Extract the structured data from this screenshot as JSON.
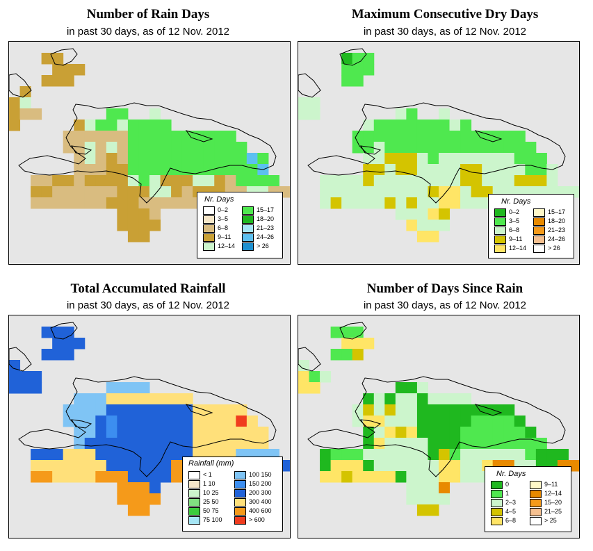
{
  "panels": {
    "p1": {
      "title": "Number of Rain Days",
      "subtitle": "in past 30 days, as of  12 Nov. 2012",
      "legend_title": "Nr. Days",
      "legend": [
        {
          "label": "0–2",
          "color": "#ffffff"
        },
        {
          "label": "3–5",
          "color": "#f5e6c8"
        },
        {
          "label": "6–8",
          "color": "#d9bc80"
        },
        {
          "label": "9–11",
          "color": "#c9a035"
        },
        {
          "label": "12–14",
          "color": "#ccf5cc"
        },
        {
          "label": "15–17",
          "color": "#4fe84f"
        },
        {
          "label": "18–20",
          "color": "#1fb81f"
        },
        {
          "label": "21–23",
          "color": "#a6e6f5"
        },
        {
          "label": "24–26",
          "color": "#5cc0f0"
        },
        {
          "label": "> 26",
          "color": "#1e90d0"
        }
      ],
      "grid": [
        "..........................",
        "...DD.....................",
        "....DDD...................",
        "...DDD....................",
        ".D........................",
        "DL........................",
        "DCC......GG..L............",
        "D.....DLGGLGGGG...........",
        ".....CCCCCCGGGGGGGGGG.....",
        ".....CCLCLCGGGGGGGGGGG....",
        "......CLCDCGGGGGGGGGGGSG..",
        "......CCCDDGGGGGGGGGGGGS..",
        "..CCDDCDDDDLGLDDDLLDCGGGG.",
        "..DDCCCCCCDDDLLDCDDDCCLLCC",
        "..CCCCCCCDDDCCCCCCCCCCC...",
        "..........DDDC............",
        "..........DDDD............",
        "...........DD.............",
        "..........................",
        ".........................."
      ]
    },
    "p2": {
      "title": "Maximum Consecutive Dry Days",
      "subtitle": "in past 30 days, as of  12 Nov. 2012",
      "legend_title": "Nr. Days",
      "legend": [
        {
          "label": "0–2",
          "color": "#1fb81f"
        },
        {
          "label": "3–5",
          "color": "#4fe84f"
        },
        {
          "label": "6–8",
          "color": "#ccf5cc"
        },
        {
          "label": "9–11",
          "color": "#d4c400"
        },
        {
          "label": "12–14",
          "color": "#ffe566"
        },
        {
          "label": "15–17",
          "color": "#fff8c8"
        },
        {
          "label": "18–20",
          "color": "#e88a00"
        },
        {
          "label": "21–23",
          "color": "#f59a1a"
        },
        {
          "label": "24–26",
          "color": "#f5c090"
        },
        {
          "label": "> 26",
          "color": "#ffffff"
        }
      ],
      "grid": [
        "..........................",
        "....GHH...................",
        "....HHH...................",
        "....HH....................",
        "..........................",
        "LL........................",
        "LL.......LH..L............",
        "......LHHHHHHHLH..........",
        ".....HHHHHHHHHHHHHHHH.....",
        ".....HHLHHHHHHHHHHHHHH....",
        "......LLDDDLHLLLLLLLHHH...",
        "......DDLDDLLLLDDLLLLHHL..",
        "..LLLLDLLLLLLLLDDLLLDDDL..",
        "..LLLLLLLLLLDEELDDLLLLLLLL",
        "..LDLLLLDLDLLEELLLLLLLL...",
        ".........LLLED............",
        "..........ELLL............",
        "...........EE.............",
        "..........................",
        ".........................."
      ]
    },
    "p3": {
      "title": "Total Accumulated Rainfall",
      "subtitle": "in past 30 days, as of  12 Nov. 2012",
      "legend_title": "Rainfall (mm)",
      "legend": [
        {
          "label": "< 1",
          "color": "#ffffff"
        },
        {
          "label": "1    10",
          "color": "#f5e6c8"
        },
        {
          "label": "10    25",
          "color": "#ccf5cc"
        },
        {
          "label": "25    50",
          "color": "#80e080"
        },
        {
          "label": "50    75",
          "color": "#3ccc3c"
        },
        {
          "label": "75  100",
          "color": "#a6e6f5"
        },
        {
          "label": "100  150",
          "color": "#7fc4f5"
        },
        {
          "label": "150  200",
          "color": "#3c8ef0"
        },
        {
          "label": "200  300",
          "color": "#2062d8"
        },
        {
          "label": "300  400",
          "color": "#ffe07a"
        },
        {
          "label": "400  600",
          "color": "#f59a1a"
        },
        {
          "label": "> 600",
          "color": "#f03c1e"
        }
      ],
      "grid": [
        "..........................",
        "...QQQ....................",
        "....QQQ...................",
        "...QQQ....................",
        "Q.........................",
        "QQQ.......................",
        "QQQ......PPPP.............",
        "......PPPUUUUUUUU.........",
        ".....PPPPQQQQQQQQUUUUU....",
        ".....PPPQRQQQQQQQUUUUXU...",
        "......PPQRQQQQQQQUUUUUUU..",
        "......PQQQQQQQQQQUUUUUUU..",
        "..QQQUUUQQQQQQQQQUUUUPPPP.",
        "..UUUUUUUQQQQQQTTTTUUPPQQQ",
        "..TTUUUUTTTQQQQTTTTTTTT...",
        "..........TTTQ............",
        "..........TTTT............",
        "...........TT.............",
        "..........................",
        ".........................."
      ]
    },
    "p4": {
      "title": "Number of Days Since Rain",
      "subtitle": "in past 30 days, as of  12 Nov. 2012",
      "legend_title": "Nr. Days",
      "legend": [
        {
          "label": "0",
          "color": "#1fb81f"
        },
        {
          "label": "1",
          "color": "#4fe84f"
        },
        {
          "label": "2–3",
          "color": "#ccf5cc"
        },
        {
          "label": "4–5",
          "color": "#d4c400"
        },
        {
          "label": "6–8",
          "color": "#ffe566"
        },
        {
          "label": "9–11",
          "color": "#fff8c8"
        },
        {
          "label": "12–14",
          "color": "#e88a00"
        },
        {
          "label": "15–20",
          "color": "#f59a1a"
        },
        {
          "label": "21–25",
          "color": "#f5c090"
        },
        {
          "label": "> 25",
          "color": "#ffffff"
        }
      ],
      "grid": [
        "..........................",
        "...HHH....................",
        "....EEE...................",
        "...HHD....................",
        "L.........................",
        "EHL.......................",
        "EE.......GGL..............",
        "......GLGLLGLLLL..........",
        ".....LDLDLLGGGGGGGGG......",
        ".....LEELLLGGGGGHHHHG.....",
        "......GLEDEGGGGHHHHHHG....",
        "......GELLLLGGGHHHHHHHH...",
        "..GHHHLLLLLLGDHLLLLLLHGGG.",
        "..GEEEGLLLLLLEELLEFFLLGGFF",
        "..EEDEEEEGLLLEELLLLLLLG...",
        "..........LLLF............",
        "..........LLLL............",
        "...........DD.............",
        "..........................",
        ".........................."
      ]
    }
  },
  "cell_colors": {
    "p1": {
      "L": "#ccf5cc",
      "G": "#4fe84f",
      "C": "#d9bc80",
      "D": "#c9a035",
      "S": "#5cc0f0"
    },
    "p2": {
      "L": "#ccf5cc",
      "H": "#4fe84f",
      "G": "#1fb81f",
      "D": "#d4c400",
      "E": "#ffe566"
    },
    "p3": {
      "Q": "#2062d8",
      "P": "#7fc4f5",
      "U": "#ffe07a",
      "T": "#f59a1a",
      "R": "#3c8ef0",
      "X": "#f03c1e"
    },
    "p4": {
      "G": "#1fb81f",
      "H": "#4fe84f",
      "L": "#ccf5cc",
      "D": "#d4c400",
      "E": "#ffe566",
      "F": "#e88a00"
    }
  },
  "colors": {
    "map_background": "#e6e6e6",
    "coastline": "#000000"
  }
}
